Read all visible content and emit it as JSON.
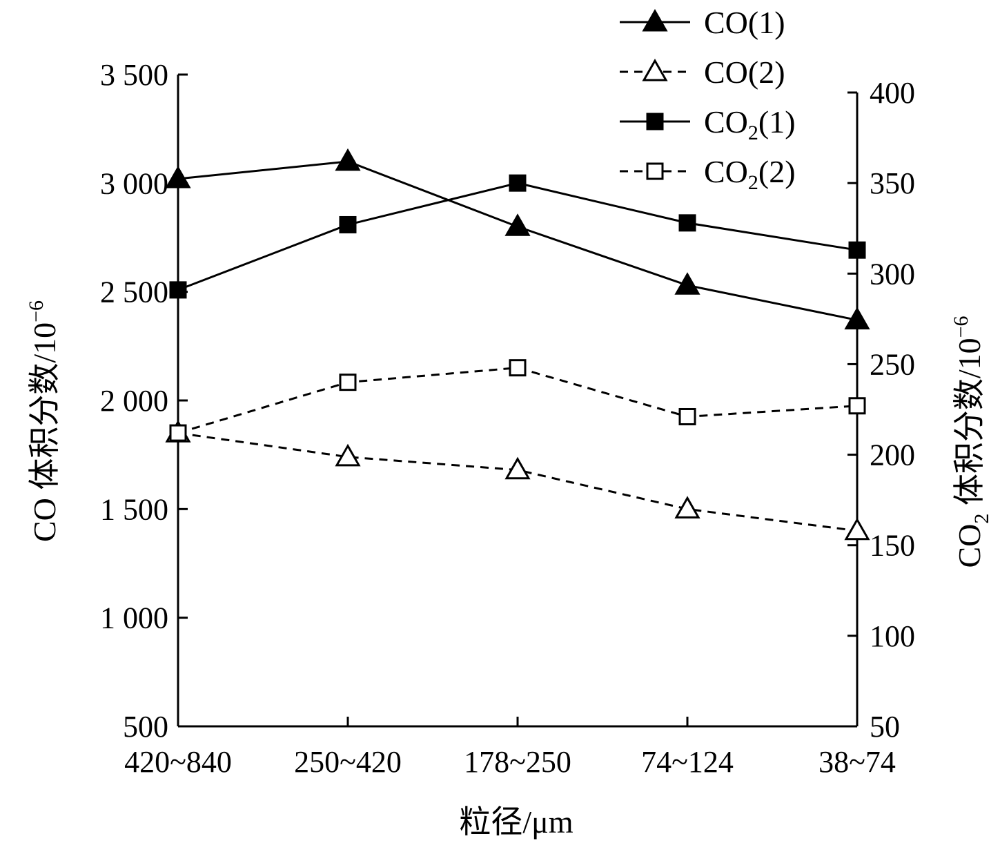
{
  "chart_data": {
    "type": "line",
    "categories": [
      "420~840",
      "250~420",
      "178~250",
      "74~124",
      "38~74"
    ],
    "xlabel": "粒径/μm",
    "ylabel_left": {
      "main": "CO 体积分数/10",
      "exp": "−6"
    },
    "ylabel_right": {
      "pre": "CO",
      "sub": "2",
      "main": " 体积分数/10",
      "exp": "−6"
    },
    "y_left": {
      "range": [
        500,
        3500
      ],
      "ticks": [
        500,
        1000,
        1500,
        2000,
        2500,
        3000,
        3500
      ],
      "tick_labels": [
        "500",
        "1 000",
        "1 500",
        "2 000",
        "2 500",
        "3 000",
        "3 500"
      ]
    },
    "y_right": {
      "range": [
        50,
        400
      ],
      "ticks": [
        50,
        100,
        150,
        200,
        250,
        300,
        350,
        400
      ],
      "tick_labels": [
        "50",
        "100",
        "150",
        "200",
        "250",
        "300",
        "350",
        "400"
      ]
    },
    "series": [
      {
        "name": "CO(1)",
        "label": {
          "pre": "CO",
          "sub": "",
          "post": "(1)"
        },
        "axis": "left",
        "marker": "triangle",
        "filled": true,
        "dashed": false,
        "values": [
          3020,
          3100,
          2800,
          2530,
          2370
        ]
      },
      {
        "name": "CO(2)",
        "label": {
          "pre": "CO",
          "sub": "",
          "post": "(2)"
        },
        "axis": "left",
        "marker": "triangle",
        "filled": false,
        "dashed": true,
        "values": [
          1850,
          1740,
          1680,
          1500,
          1400
        ]
      },
      {
        "name": "CO2(1)",
        "label": {
          "pre": "CO",
          "sub": "2",
          "post": "(1)"
        },
        "axis": "right",
        "marker": "square",
        "filled": true,
        "dashed": false,
        "values": [
          291,
          327,
          350,
          328,
          313
        ]
      },
      {
        "name": "CO2(2)",
        "label": {
          "pre": "CO",
          "sub": "2",
          "post": "(2)"
        },
        "axis": "right",
        "marker": "square",
        "filled": false,
        "dashed": true,
        "values": [
          212,
          240,
          248,
          221,
          227
        ]
      }
    ],
    "legend_position": "top-right"
  }
}
